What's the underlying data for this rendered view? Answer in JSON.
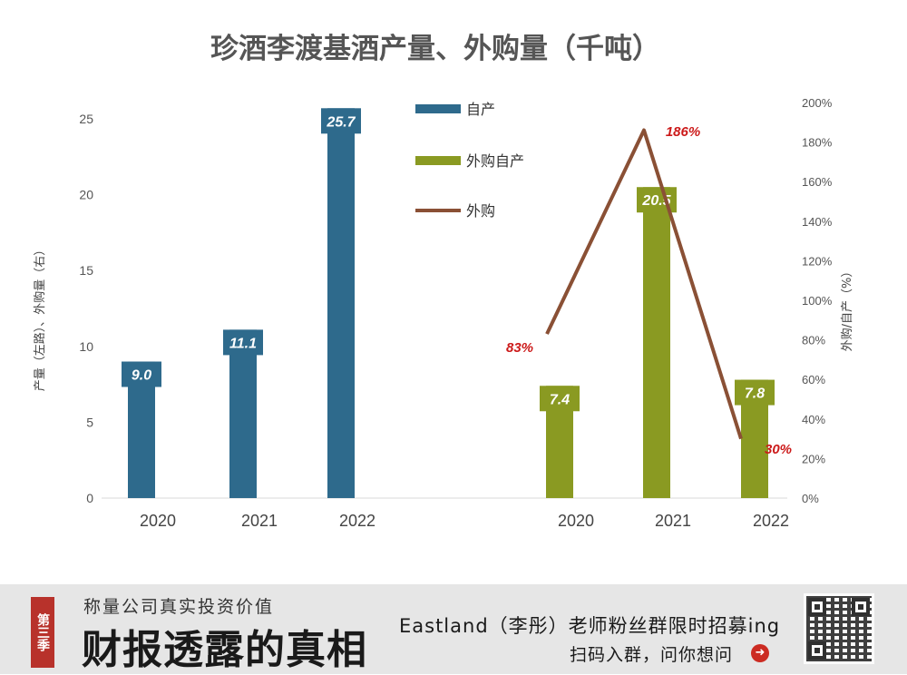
{
  "chart_data": {
    "type": "bar",
    "title": "珍酒李渡基酒产量、外购量（千吨）",
    "ylabel_left": "产量（左路）、外购量（右）",
    "ylabel_right": "外购/自产（%）",
    "left_ticks": [
      "0",
      "5",
      "10",
      "15",
      "20",
      "25"
    ],
    "right_ticks": [
      "0%",
      "20%",
      "40%",
      "60%",
      "80%",
      "100%",
      "120%",
      "140%",
      "160%",
      "180%",
      "200%"
    ],
    "ylim_left": [
      0,
      25
    ],
    "ylim_right": [
      0,
      200
    ],
    "groups": [
      {
        "series": "自产",
        "color": "#2e6a8c",
        "categories": [
          "2020",
          "2021",
          "2022"
        ],
        "values": [
          9.0,
          11.1,
          25.7
        ],
        "labels": [
          "9.0",
          "11.1",
          "25.7"
        ]
      },
      {
        "series": "外购自产",
        "color": "#8a9a22",
        "categories": [
          "2020",
          "2021",
          "2022"
        ],
        "values": [
          7.4,
          20.5,
          7.8
        ],
        "labels": [
          "7.4",
          "20.5",
          "7.8"
        ]
      }
    ],
    "line": {
      "series": "外购",
      "color": "#8a5035",
      "axis": "right",
      "categories": [
        "2020",
        "2021",
        "2022"
      ],
      "values": [
        83,
        186,
        30
      ],
      "labels": [
        "83%",
        "186%",
        "30%"
      ],
      "label_color": "#cc1a1a"
    },
    "legend": [
      "自产",
      "外购自产",
      "外购"
    ],
    "legend_position": "top-center"
  },
  "banner": {
    "season_tag": "第三季",
    "subtitle": "称量公司真实投资价值",
    "main_title": "财报透露的真相",
    "right_line1": "Eastland（李彤）老师粉丝群限时招募ing",
    "right_line2": "扫码入群，问你想问",
    "arrow_icon": "arrow-right-circle-icon",
    "accent_color": "#b8322b"
  }
}
